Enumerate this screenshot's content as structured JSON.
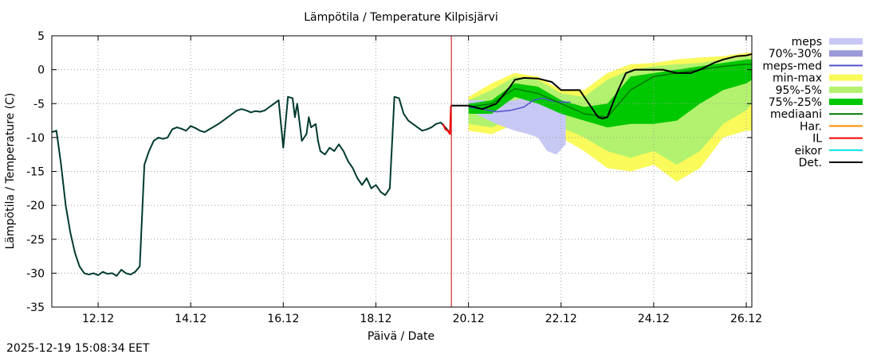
{
  "chart_data": {
    "type": "line",
    "title": "Lämpötila / Temperature   Kilpisjärvi",
    "xlabel": "Päivä / Date",
    "ylabel": "Lämpötila / Temperature (C)",
    "ylim": [
      -35,
      5
    ],
    "yticks": [
      5,
      0,
      -5,
      -10,
      -15,
      -20,
      -25,
      -30,
      -35
    ],
    "xlim": [
      11.0,
      26.12
    ],
    "xticks": [
      {
        "value": 12.0,
        "label": "12.12"
      },
      {
        "value": 14.0,
        "label": "14.12"
      },
      {
        "value": 16.0,
        "label": "16.12"
      },
      {
        "value": 18.0,
        "label": "18.12"
      },
      {
        "value": 20.0,
        "label": "20.12"
      },
      {
        "value": 22.0,
        "label": "22.12"
      },
      {
        "value": 24.0,
        "label": "24.12"
      },
      {
        "value": 26.0,
        "label": "26.12"
      }
    ],
    "grid": true,
    "now_marker_x": 19.63,
    "legend": [
      {
        "label": "meps",
        "color": "#c8c8f5",
        "style": "band"
      },
      {
        "label": "70%-30%",
        "color": "#9a9ad8",
        "style": "band"
      },
      {
        "label": "meps-med",
        "color": "#5050d0",
        "style": "line"
      },
      {
        "label": "min-max",
        "color": "#fafa5a",
        "style": "band"
      },
      {
        "label": "95%-5%",
        "color": "#b2f26e",
        "style": "band"
      },
      {
        "label": "75%-25%",
        "color": "#00c800",
        "style": "band"
      },
      {
        "label": "mediaani",
        "color": "#007800",
        "style": "line"
      },
      {
        "label": "Har.",
        "color": "#ff8c00",
        "style": "line"
      },
      {
        "label": "IL",
        "color": "#ff0000",
        "style": "line"
      },
      {
        "label": "eikor",
        "color": "#00e0e0",
        "style": "line"
      },
      {
        "label": "Det.",
        "color": "#000000",
        "style": "line"
      }
    ],
    "observed": {
      "x": [
        11.0,
        11.1,
        11.2,
        11.3,
        11.4,
        11.5,
        11.6,
        11.7,
        11.8,
        11.9,
        12.0,
        12.1,
        12.2,
        12.3,
        12.4,
        12.5,
        12.6,
        12.7,
        12.8,
        12.9,
        13.0,
        13.05,
        13.1,
        13.2,
        13.3,
        13.4,
        13.5,
        13.6,
        13.7,
        13.8,
        13.9,
        14.0,
        14.1,
        14.2,
        14.3,
        14.4,
        14.5,
        14.6,
        14.7,
        14.8,
        14.9,
        15.0,
        15.1,
        15.2,
        15.3,
        15.4,
        15.5,
        15.6,
        15.7,
        15.8,
        15.9,
        16.0,
        16.1,
        16.2,
        16.25,
        16.3,
        16.4,
        16.5,
        16.55,
        16.6,
        16.7,
        16.75,
        16.8,
        16.9,
        17.0,
        17.1,
        17.2,
        17.3,
        17.4,
        17.5,
        17.6,
        17.7,
        17.8,
        17.9,
        18.0,
        18.1,
        18.2,
        18.3,
        18.4,
        18.5,
        18.6,
        18.7,
        18.8,
        18.9,
        19.0,
        19.1,
        19.2,
        19.3,
        19.4,
        19.5,
        19.6
      ],
      "y": [
        -9.2,
        -9.0,
        -14.0,
        -20.0,
        -24.0,
        -27.0,
        -29.0,
        -30.0,
        -30.2,
        -30.0,
        -30.3,
        -29.8,
        -30.1,
        -30.0,
        -30.4,
        -29.5,
        -30.0,
        -30.2,
        -29.8,
        -29.0,
        -14.0,
        -13.0,
        -12.0,
        -10.5,
        -10.0,
        -10.2,
        -10.0,
        -8.8,
        -8.5,
        -8.7,
        -9.0,
        -8.3,
        -8.6,
        -9.0,
        -9.2,
        -8.8,
        -8.4,
        -8.0,
        -7.5,
        -7.0,
        -6.5,
        -6.0,
        -5.8,
        -6.0,
        -6.3,
        -6.1,
        -6.2,
        -6.0,
        -5.5,
        -5.0,
        -4.5,
        -11.5,
        -4.0,
        -4.2,
        -7.0,
        -5.0,
        -10.5,
        -9.5,
        -7.0,
        -8.5,
        -8.0,
        -10.5,
        -12.0,
        -12.5,
        -11.5,
        -12.0,
        -11.0,
        -12.0,
        -13.5,
        -14.5,
        -16.0,
        -17.0,
        -16.0,
        -17.5,
        -17.0,
        -18.0,
        -18.5,
        -17.5,
        -4.0,
        -4.2,
        -6.5,
        -7.5,
        -8.0,
        -8.5,
        -9.0,
        -8.8,
        -8.5,
        -8.0,
        -7.8,
        -8.5,
        -9.3
      ]
    },
    "il_segment": {
      "x": [
        19.45,
        19.5,
        19.55,
        19.6,
        19.62
      ],
      "y": [
        -8.0,
        -8.8,
        -9.0,
        -9.5,
        -5.3
      ]
    },
    "meps_band": {
      "x": [
        20.0,
        20.3,
        20.6,
        21.0,
        21.3,
        21.5,
        21.7,
        21.9,
        22.1
      ],
      "upper": [
        -4.5,
        -4.5,
        -4.8,
        -4.5,
        -4.0,
        -4.0,
        -4.0,
        -4.5,
        -4.5
      ],
      "lower": [
        -6.0,
        -7.0,
        -8.0,
        -9.0,
        -9.5,
        -10.0,
        -12.0,
        -12.5,
        -11.0
      ]
    },
    "meps_med": {
      "x": [
        20.0,
        20.3,
        20.6,
        20.9,
        21.2,
        21.4,
        21.6,
        21.8,
        22.0,
        22.2
      ],
      "y": [
        -5.5,
        -5.8,
        -6.2,
        -6.0,
        -5.5,
        -4.5,
        -4.2,
        -4.6,
        -4.8,
        -4.8
      ]
    },
    "minmax": {
      "x": [
        20.0,
        20.5,
        21.0,
        21.5,
        22.0,
        22.5,
        23.0,
        23.5,
        24.0,
        24.5,
        25.0,
        25.5,
        26.0,
        26.12
      ],
      "upper": [
        -4.0,
        -2.0,
        -0.5,
        -1.0,
        -3.0,
        -3.0,
        -0.5,
        0.8,
        1.0,
        1.5,
        1.8,
        2.0,
        2.5,
        2.5
      ],
      "lower": [
        -9.0,
        -9.5,
        -8.0,
        -9.0,
        -10.0,
        -12.0,
        -14.5,
        -15.0,
        -14.0,
        -16.5,
        -14.5,
        -10.0,
        -9.0,
        -9.0
      ]
    },
    "p95_5": {
      "x": [
        20.0,
        20.5,
        21.0,
        21.5,
        22.0,
        22.5,
        23.0,
        23.5,
        24.0,
        24.5,
        25.0,
        25.5,
        26.0,
        26.12
      ],
      "upper": [
        -4.5,
        -3.0,
        -1.0,
        -1.5,
        -3.5,
        -4.0,
        -1.5,
        0.0,
        0.5,
        0.8,
        1.0,
        1.5,
        2.0,
        2.0
      ],
      "lower": [
        -8.0,
        -8.5,
        -7.0,
        -8.0,
        -8.5,
        -10.0,
        -12.0,
        -13.0,
        -12.0,
        -14.0,
        -12.0,
        -8.0,
        -6.0,
        -5.0
      ]
    },
    "p75_25": {
      "x": [
        20.0,
        20.5,
        21.0,
        21.5,
        22.0,
        22.5,
        23.0,
        23.5,
        24.0,
        24.5,
        25.0,
        25.5,
        26.0,
        26.12
      ],
      "upper": [
        -5.0,
        -4.5,
        -2.0,
        -2.5,
        -4.5,
        -5.5,
        -5.0,
        -1.0,
        -0.5,
        0.0,
        0.5,
        1.0,
        1.5,
        1.5
      ],
      "lower": [
        -6.5,
        -6.5,
        -4.0,
        -5.0,
        -6.5,
        -7.5,
        -8.5,
        -8.0,
        -8.0,
        -7.5,
        -5.0,
        -3.0,
        -2.0,
        -1.5
      ]
    },
    "median": {
      "x": [
        20.0,
        20.5,
        21.0,
        21.5,
        22.0,
        22.5,
        23.0,
        23.5,
        24.0,
        24.5,
        25.0,
        25.5,
        26.0,
        26.12
      ],
      "y": [
        -5.5,
        -5.0,
        -2.8,
        -3.5,
        -5.0,
        -6.5,
        -7.0,
        -3.0,
        -1.0,
        -0.5,
        0.0,
        0.5,
        0.8,
        0.8
      ]
    },
    "det": {
      "x": [
        19.62,
        20.0,
        20.3,
        20.6,
        20.9,
        21.0,
        21.2,
        21.5,
        21.8,
        22.0,
        22.2,
        22.4,
        22.6,
        22.8,
        22.9,
        23.0,
        23.2,
        23.4,
        23.6,
        23.8,
        24.0,
        24.2,
        24.5,
        24.8,
        25.0,
        25.3,
        25.5,
        25.8,
        26.0,
        26.12
      ],
      "y": [
        -5.3,
        -5.3,
        -5.8,
        -5.0,
        -2.5,
        -1.5,
        -1.2,
        -1.3,
        -1.8,
        -3.0,
        -3.0,
        -3.0,
        -5.0,
        -7.0,
        -7.2,
        -7.0,
        -3.5,
        -0.5,
        0.0,
        0.0,
        0.0,
        0.0,
        -0.5,
        -0.5,
        0.0,
        1.0,
        1.5,
        2.0,
        2.1,
        2.3
      ]
    }
  },
  "footer": {
    "timestamp": "2025-12-19 15:08:34 EET"
  }
}
